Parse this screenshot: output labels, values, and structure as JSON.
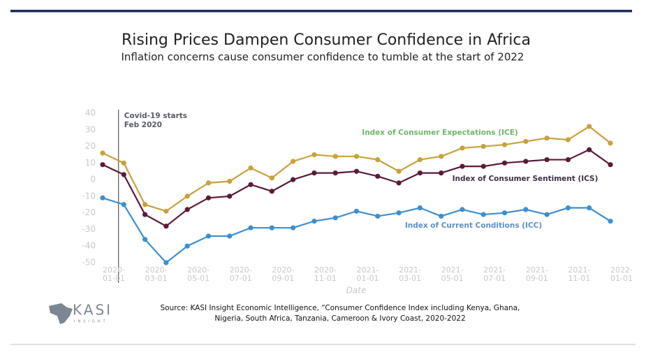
{
  "header": {
    "title": "Rising Prices Dampen Consumer Confidence in Africa",
    "subtitle": "Inflation concerns cause consumer confidence to tumble at the start of 2022"
  },
  "chart_data": {
    "type": "line",
    "x_label": "Date",
    "categories": [
      "2020-01-01",
      null,
      "2020-03-01",
      null,
      "2020-05-01",
      null,
      "2020-07-01",
      null,
      "2020-09-01",
      null,
      "2020-11-01",
      null,
      "2021-01-01",
      null,
      "2021-03-01",
      null,
      "2021-05-01",
      null,
      "2021-07-01",
      null,
      "2021-09-01",
      null,
      "2021-11-01",
      null,
      "2022-01-01"
    ],
    "ylim": [
      -50,
      40
    ],
    "yticks": [
      -50,
      -40,
      -30,
      -20,
      -10,
      0,
      10,
      20,
      30,
      40
    ],
    "series": [
      {
        "name": "Index of Consumer Expectations (ICE)",
        "color": "#c9a13b",
        "label_color": "#6cb86a",
        "values": [
          16,
          10,
          -15,
          -19,
          -10,
          -2,
          -1,
          7,
          1,
          11,
          15,
          14,
          14,
          12,
          5,
          12,
          14,
          19,
          20,
          21,
          23,
          25,
          24,
          32,
          22
        ]
      },
      {
        "name": "Index of Consumer Sentiment (ICS)",
        "color": "#5a1a3a",
        "label_color": "#3b2f45",
        "values": [
          9,
          3,
          -21,
          -28,
          -18,
          -11,
          -10,
          -3,
          -7,
          0,
          4,
          4,
          5,
          2,
          -2,
          4,
          4,
          8,
          8,
          10,
          11,
          12,
          12,
          18,
          9
        ]
      },
      {
        "name": "Index of Current Conditions (ICC)",
        "color": "#3d8fd1",
        "label_color": "#5b8fc9",
        "values": [
          -11,
          -15,
          -36,
          -50,
          -40,
          -34,
          -34,
          -29,
          -29,
          -29,
          -25,
          -23,
          -19,
          -22,
          -20,
          -17,
          -22,
          -18,
          -21,
          -20,
          -18,
          -21,
          -17,
          -17,
          -25
        ]
      }
    ],
    "annotation": [
      "Covid-19 starts",
      "Feb 2020"
    ]
  },
  "footer": {
    "logo": "KASI",
    "logo_tagline": "INSIGHT",
    "source": [
      "Source: KASI Insight Economic Intelligence, “Consumer Confidence Index including Kenya, Ghana,",
      "Nigeria, South Africa, Tanzania, Cameroon & Ivory Coast, 2020-2022"
    ]
  }
}
